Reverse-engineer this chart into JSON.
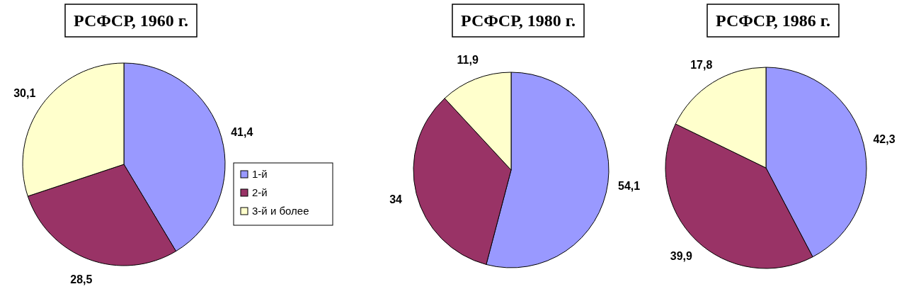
{
  "chart_data": [
    {
      "type": "pie",
      "title": "РСФСР, 1960 г.",
      "categories": [
        "1-й",
        "2-й",
        "3-й и более"
      ],
      "values": [
        41.4,
        28.5,
        30.1
      ],
      "value_labels": [
        "41,4",
        "28,5",
        "30,1"
      ],
      "colors": [
        "#9999ff",
        "#993366",
        "#ffffcc"
      ],
      "legend": "right"
    },
    {
      "type": "pie",
      "title": "РСФСР, 1980 г.",
      "values": [
        54.1,
        34,
        11.9
      ],
      "value_labels": [
        "54,1",
        "34",
        "11,9"
      ],
      "colors": [
        "#9999ff",
        "#993366",
        "#ffffcc"
      ]
    },
    {
      "type": "pie",
      "title": "РСФСР, 1986 г.",
      "values": [
        42.3,
        39.9,
        17.8
      ],
      "value_labels": [
        "42,3",
        "39,9",
        "17,8"
      ],
      "colors": [
        "#9999ff",
        "#993366",
        "#ffffcc"
      ]
    }
  ]
}
